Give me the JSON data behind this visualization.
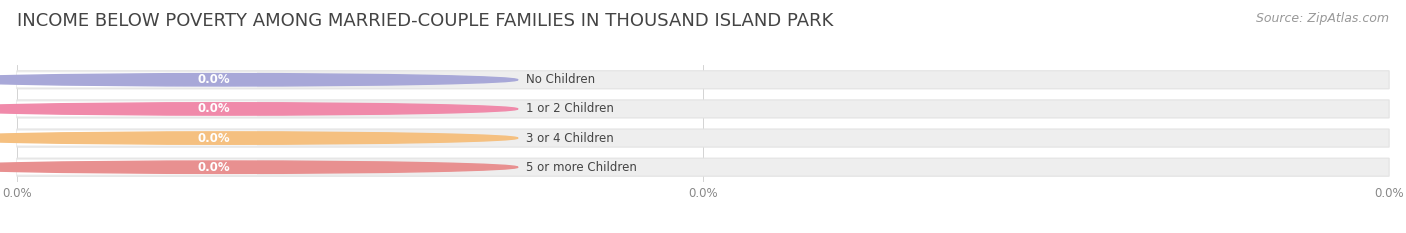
{
  "title": "INCOME BELOW POVERTY AMONG MARRIED-COUPLE FAMILIES IN THOUSAND ISLAND PARK",
  "source": "Source: ZipAtlas.com",
  "categories": [
    "No Children",
    "1 or 2 Children",
    "3 or 4 Children",
    "5 or more Children"
  ],
  "values": [
    0.0,
    0.0,
    0.0,
    0.0
  ],
  "bar_colors": [
    "#a8a8d8",
    "#f08aaa",
    "#f5c080",
    "#e89090"
  ],
  "bg_bar_color": "#eeeeee",
  "bg_bar_edge_color": "#e2e2e2",
  "title_fontsize": 13,
  "source_fontsize": 9,
  "bar_height": 0.62,
  "figsize": [
    14.06,
    2.33
  ],
  "dpi": 100,
  "tick_label_color": "#888888",
  "tick_label_fontsize": 8.5,
  "label_fontsize": 8.5,
  "value_fontsize": 8.5,
  "title_color": "#444444",
  "source_color": "#999999"
}
